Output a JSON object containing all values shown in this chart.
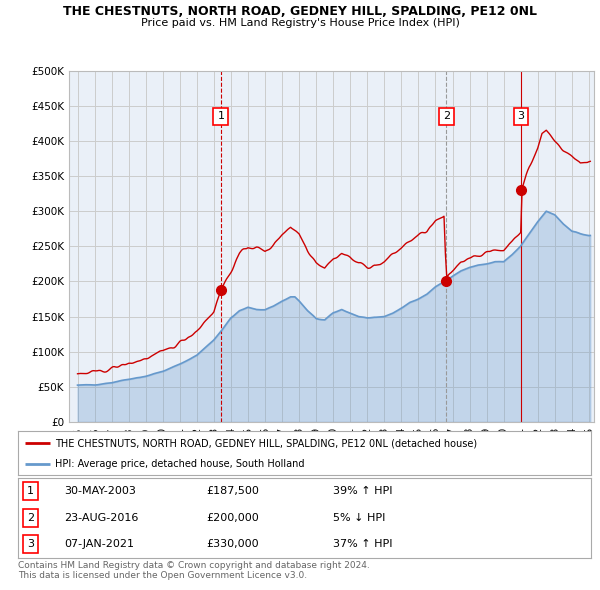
{
  "title": "THE CHESTNUTS, NORTH ROAD, GEDNEY HILL, SPALDING, PE12 0NL",
  "subtitle": "Price paid vs. HM Land Registry's House Price Index (HPI)",
  "ylabel_ticks": [
    "£0",
    "£50K",
    "£100K",
    "£150K",
    "£200K",
    "£250K",
    "£300K",
    "£350K",
    "£400K",
    "£450K",
    "£500K"
  ],
  "ytick_values": [
    0,
    50000,
    100000,
    150000,
    200000,
    250000,
    300000,
    350000,
    400000,
    450000,
    500000
  ],
  "ylim": [
    0,
    500000
  ],
  "xlim_start": 1994.5,
  "xlim_end": 2025.3,
  "fig_bg_color": "#ffffff",
  "plot_bg_color": "#eaf0f8",
  "plot_bg_left_color": "#ffffff",
  "grid_color": "#cccccc",
  "sale_color": "#cc0000",
  "hpi_color": "#6699cc",
  "sale_vline_color": "#cc0000",
  "sale2_vline_color": "#999999",
  "sale3_vline_color": "#cc0000",
  "legend_label_sale": "THE CHESTNUTS, NORTH ROAD, GEDNEY HILL, SPALDING, PE12 0NL (detached house)",
  "legend_label_hpi": "HPI: Average price, detached house, South Holland",
  "sales": [
    {
      "num": 1,
      "date_x": 2003.41,
      "price": 187500,
      "label": "30-MAY-2003",
      "price_str": "£187,500",
      "pct": "39%",
      "dir": "↑",
      "vline_style": "--",
      "vline_color": "#cc0000"
    },
    {
      "num": 2,
      "date_x": 2016.64,
      "price": 200000,
      "label": "23-AUG-2016",
      "price_str": "£200,000",
      "pct": "5%",
      "dir": "↓",
      "vline_style": "--",
      "vline_color": "#aaaaaa"
    },
    {
      "num": 3,
      "date_x": 2021.02,
      "price": 330000,
      "label": "07-JAN-2021",
      "price_str": "£330,000",
      "pct": "37%",
      "dir": "↑",
      "vline_style": "-",
      "vline_color": "#cc0000"
    }
  ],
  "footer": "Contains HM Land Registry data © Crown copyright and database right 2024.\nThis data is licensed under the Open Government Licence v3.0.",
  "xtick_years": [
    1995,
    1996,
    1997,
    1998,
    1999,
    2000,
    2001,
    2002,
    2003,
    2004,
    2005,
    2006,
    2007,
    2008,
    2009,
    2010,
    2011,
    2012,
    2013,
    2014,
    2015,
    2016,
    2017,
    2018,
    2019,
    2020,
    2021,
    2022,
    2023,
    2024,
    2025
  ]
}
